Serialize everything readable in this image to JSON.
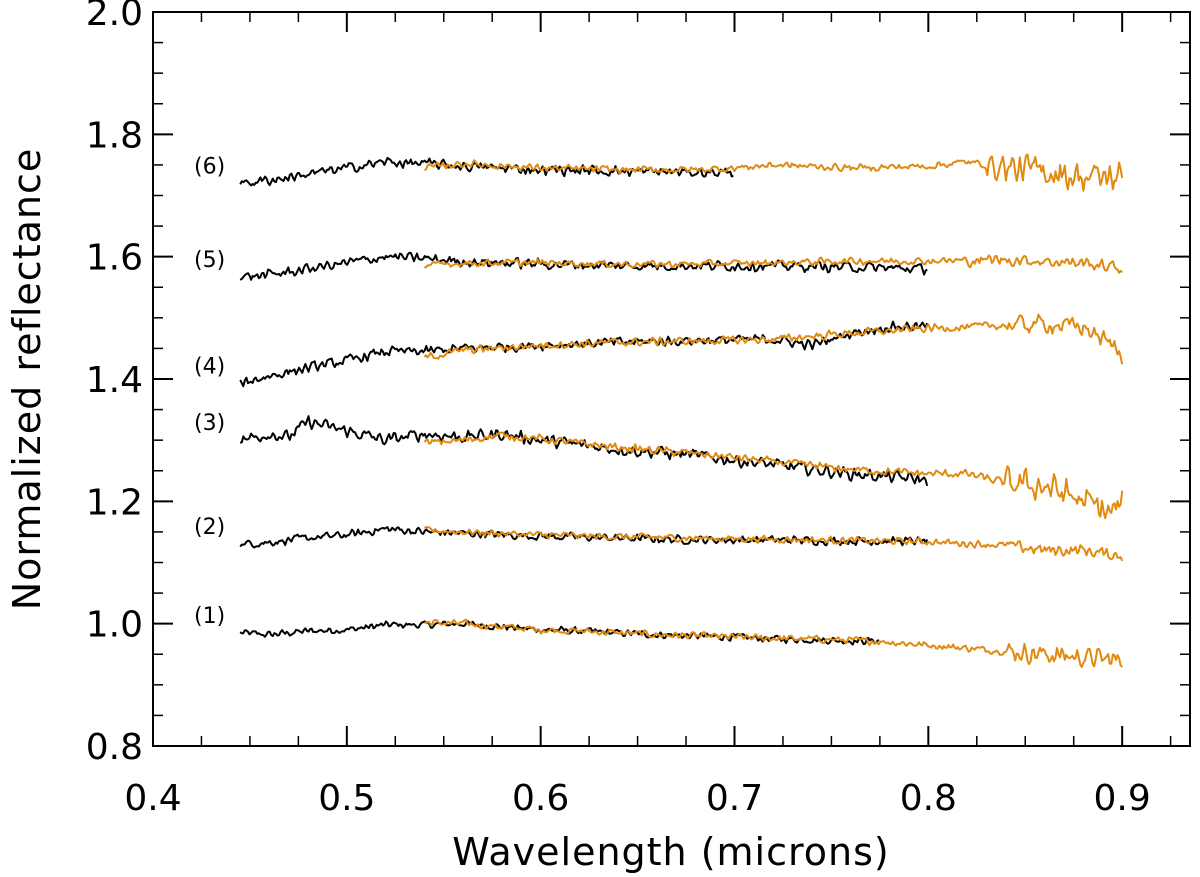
{
  "chart_data": {
    "type": "line",
    "title": "",
    "xlabel": "Wavelength (microns)",
    "ylabel": "Normalized reflectance",
    "xlim": [
      0.4,
      0.935
    ],
    "ylim": [
      0.8,
      2.0
    ],
    "xticks": [
      0.4,
      0.5,
      0.6,
      0.7,
      0.8,
      0.9
    ],
    "xtick_labels": [
      "0.4",
      "0.5",
      "0.6",
      "0.7",
      "0.8",
      "0.9"
    ],
    "yticks": [
      0.8,
      1.0,
      1.2,
      1.4,
      1.6,
      1.8,
      2.0
    ],
    "ytick_labels": [
      "0.8",
      "1.0",
      "1.2",
      "1.4",
      "1.6",
      "1.8",
      "2.0"
    ],
    "colors": {
      "black": "#000000",
      "orange": "#e08a10"
    },
    "series": [
      {
        "name": "(1)",
        "black": {
          "x": [
            0.445,
            0.46,
            0.48,
            0.5,
            0.52,
            0.54,
            0.56,
            0.58,
            0.6,
            0.62,
            0.64,
            0.66,
            0.68,
            0.7,
            0.72,
            0.74,
            0.76,
            0.775
          ],
          "y": [
            0.985,
            0.982,
            0.988,
            0.99,
            0.998,
            0.998,
            1.0,
            0.995,
            0.99,
            0.988,
            0.985,
            0.982,
            0.98,
            0.978,
            0.975,
            0.974,
            0.972,
            0.972
          ],
          "noise": 0.007
        },
        "orange": {
          "x": [
            0.54,
            0.56,
            0.58,
            0.6,
            0.62,
            0.64,
            0.66,
            0.68,
            0.7,
            0.72,
            0.74,
            0.76,
            0.78,
            0.8,
            0.82,
            0.84,
            0.86,
            0.88,
            0.9
          ],
          "y": [
            1.002,
            1.0,
            0.995,
            0.99,
            0.988,
            0.985,
            0.982,
            0.98,
            0.978,
            0.976,
            0.975,
            0.973,
            0.97,
            0.965,
            0.96,
            0.955,
            0.95,
            0.945,
            0.94
          ],
          "noise": 0.007,
          "noise_tail": 0.02,
          "tail_start": 0.84
        }
      },
      {
        "name": "(2)",
        "black": {
          "x": [
            0.445,
            0.46,
            0.48,
            0.5,
            0.52,
            0.54,
            0.56,
            0.6,
            0.64,
            0.68,
            0.72,
            0.76,
            0.8
          ],
          "y": [
            1.13,
            1.133,
            1.14,
            1.145,
            1.155,
            1.15,
            1.148,
            1.143,
            1.14,
            1.137,
            1.137,
            1.135,
            1.135
          ],
          "noise": 0.008
        },
        "orange": {
          "x": [
            0.54,
            0.56,
            0.6,
            0.64,
            0.68,
            0.72,
            0.76,
            0.8,
            0.84,
            0.86,
            0.88,
            0.9
          ],
          "y": [
            1.153,
            1.15,
            1.145,
            1.142,
            1.14,
            1.138,
            1.136,
            1.134,
            1.128,
            1.12,
            1.12,
            1.11
          ],
          "noise": 0.007,
          "noise_tail": 0.012,
          "tail_start": 0.84
        }
      },
      {
        "name": "(3)",
        "black": {
          "x": [
            0.445,
            0.46,
            0.47,
            0.48,
            0.5,
            0.52,
            0.54,
            0.56,
            0.58,
            0.6,
            0.64,
            0.68,
            0.72,
            0.76,
            0.8
          ],
          "y": [
            1.3,
            1.31,
            1.305,
            1.33,
            1.315,
            1.3,
            1.31,
            1.305,
            1.31,
            1.3,
            1.285,
            1.275,
            1.26,
            1.245,
            1.235
          ],
          "noise": 0.012
        },
        "orange": {
          "x": [
            0.54,
            0.56,
            0.58,
            0.6,
            0.64,
            0.68,
            0.72,
            0.76,
            0.8,
            0.82,
            0.84,
            0.86,
            0.88,
            0.895,
            0.9
          ],
          "y": [
            1.295,
            1.3,
            1.308,
            1.302,
            1.288,
            1.278,
            1.265,
            1.252,
            1.245,
            1.245,
            1.23,
            1.225,
            1.2,
            1.18,
            1.2
          ],
          "noise": 0.008,
          "noise_tail": 0.03,
          "tail_start": 0.84
        }
      },
      {
        "name": "(4)",
        "black": {
          "x": [
            0.445,
            0.46,
            0.48,
            0.5,
            0.52,
            0.54,
            0.56,
            0.6,
            0.64,
            0.68,
            0.72,
            0.74,
            0.76,
            0.78,
            0.8
          ],
          "y": [
            1.393,
            1.405,
            1.418,
            1.43,
            1.445,
            1.445,
            1.45,
            1.455,
            1.46,
            1.463,
            1.465,
            1.455,
            1.475,
            1.485,
            1.487
          ],
          "noise": 0.01
        },
        "orange": {
          "x": [
            0.54,
            0.56,
            0.6,
            0.64,
            0.68,
            0.72,
            0.76,
            0.8,
            0.82,
            0.84,
            0.86,
            0.88,
            0.895,
            0.9
          ],
          "y": [
            1.435,
            1.447,
            1.455,
            1.46,
            1.462,
            1.465,
            1.475,
            1.483,
            1.485,
            1.488,
            1.49,
            1.485,
            1.455,
            1.44
          ],
          "noise": 0.008,
          "noise_tail": 0.018,
          "tail_start": 0.84
        }
      },
      {
        "name": "(5)",
        "black": {
          "x": [
            0.445,
            0.46,
            0.48,
            0.5,
            0.52,
            0.54,
            0.56,
            0.6,
            0.64,
            0.68,
            0.72,
            0.76,
            0.8
          ],
          "y": [
            1.567,
            1.57,
            1.58,
            1.59,
            1.6,
            1.597,
            1.592,
            1.588,
            1.585,
            1.585,
            1.585,
            1.583,
            1.58
          ],
          "noise": 0.01
        },
        "orange": {
          "x": [
            0.54,
            0.56,
            0.6,
            0.64,
            0.68,
            0.72,
            0.76,
            0.8,
            0.84,
            0.88,
            0.9
          ],
          "y": [
            1.585,
            1.59,
            1.59,
            1.588,
            1.588,
            1.59,
            1.593,
            1.593,
            1.595,
            1.59,
            1.58
          ],
          "noise": 0.007,
          "noise_tail": 0.012,
          "tail_start": 0.82
        }
      },
      {
        "name": "(6)",
        "black": {
          "x": [
            0.445,
            0.46,
            0.48,
            0.5,
            0.52,
            0.54,
            0.56,
            0.6,
            0.64,
            0.68,
            0.7
          ],
          "y": [
            1.72,
            1.725,
            1.735,
            1.745,
            1.755,
            1.752,
            1.748,
            1.742,
            1.74,
            1.738,
            1.738
          ],
          "noise": 0.01
        },
        "orange": {
          "x": [
            0.54,
            0.56,
            0.6,
            0.64,
            0.68,
            0.7,
            0.72,
            0.76,
            0.8,
            0.82,
            0.84,
            0.86,
            0.88,
            0.9
          ],
          "y": [
            1.745,
            1.752,
            1.745,
            1.742,
            1.742,
            1.745,
            1.75,
            1.745,
            1.748,
            1.755,
            1.745,
            1.74,
            1.73,
            1.73
          ],
          "noise": 0.007,
          "noise_tail": 0.03,
          "tail_start": 0.83
        }
      }
    ]
  }
}
